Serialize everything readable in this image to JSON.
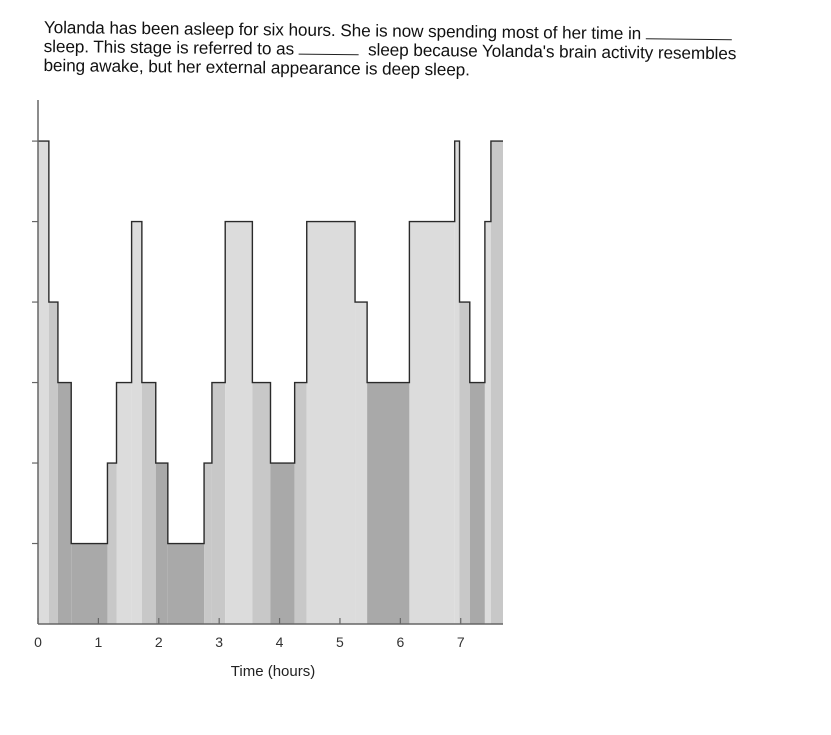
{
  "question": {
    "part1": "Yolanda has been asleep for six hours. She is now spending most of her time in",
    "part2": "sleep. This stage is referred to as",
    "part3": "sleep because Yolanda's brain activity resembles",
    "part4": "being awake, but her external appearance is deep sleep."
  },
  "chart_data": {
    "type": "area",
    "title": "",
    "xlabel": "Time (hours)",
    "ylabel": "",
    "xlim": [
      0,
      7.7
    ],
    "ylim": [
      0,
      6.2
    ],
    "x_ticks": [
      0,
      1,
      2,
      3,
      4,
      5,
      6,
      7
    ],
    "x_tick_labels": [
      "0",
      "1",
      "2",
      "3",
      "4",
      "5",
      "6",
      "7"
    ],
    "y_ticks": [
      1,
      2,
      3,
      4,
      5,
      6
    ],
    "grid": false,
    "colors": {
      "light": "#dcdcdc",
      "mid": "#c8c8c8",
      "dark": "#a9a9a9",
      "outline": "#2a2a2a",
      "axis": "#666666"
    },
    "series": [
      {
        "values": [
          {
            "x0": 0.0,
            "x1": 0.18,
            "y": 6.0,
            "shade": "light"
          },
          {
            "x0": 0.18,
            "x1": 0.33,
            "y": 4.0,
            "shade": "mid"
          },
          {
            "x0": 0.33,
            "x1": 0.55,
            "y": 3.0,
            "shade": "dark"
          },
          {
            "x0": 0.55,
            "x1": 1.15,
            "y": 1.0,
            "shade": "dark"
          },
          {
            "x0": 1.15,
            "x1": 1.3,
            "y": 2.0,
            "shade": "mid"
          },
          {
            "x0": 1.3,
            "x1": 1.55,
            "y": 3.0,
            "shade": "light"
          },
          {
            "x0": 1.55,
            "x1": 1.72,
            "y": 5.0,
            "shade": "light"
          },
          {
            "x0": 1.72,
            "x1": 1.95,
            "y": 3.0,
            "shade": "mid"
          },
          {
            "x0": 1.95,
            "x1": 2.15,
            "y": 2.0,
            "shade": "dark"
          },
          {
            "x0": 2.15,
            "x1": 2.75,
            "y": 1.0,
            "shade": "dark"
          },
          {
            "x0": 2.75,
            "x1": 2.88,
            "y": 2.0,
            "shade": "mid"
          },
          {
            "x0": 2.88,
            "x1": 3.1,
            "y": 3.0,
            "shade": "mid"
          },
          {
            "x0": 3.1,
            "x1": 3.55,
            "y": 5.0,
            "shade": "light"
          },
          {
            "x0": 3.55,
            "x1": 3.85,
            "y": 3.0,
            "shade": "mid"
          },
          {
            "x0": 3.85,
            "x1": 4.25,
            "y": 2.0,
            "shade": "dark"
          },
          {
            "x0": 4.25,
            "x1": 4.45,
            "y": 3.0,
            "shade": "mid"
          },
          {
            "x0": 4.45,
            "x1": 5.25,
            "y": 5.0,
            "shade": "light"
          },
          {
            "x0": 5.25,
            "x1": 5.45,
            "y": 4.0,
            "shade": "light"
          },
          {
            "x0": 5.45,
            "x1": 6.15,
            "y": 3.0,
            "shade": "dark"
          },
          {
            "x0": 6.15,
            "x1": 6.9,
            "y": 5.0,
            "shade": "light"
          },
          {
            "x0": 6.9,
            "x1": 6.98,
            "y": 6.0,
            "shade": "light"
          },
          {
            "x0": 6.98,
            "x1": 7.15,
            "y": 4.0,
            "shade": "mid"
          },
          {
            "x0": 7.15,
            "x1": 7.4,
            "y": 3.0,
            "shade": "dark"
          },
          {
            "x0": 7.4,
            "x1": 7.5,
            "y": 5.0,
            "shade": "light"
          },
          {
            "x0": 7.5,
            "x1": 7.7,
            "y": 6.0,
            "shade": "mid"
          }
        ]
      }
    ]
  }
}
